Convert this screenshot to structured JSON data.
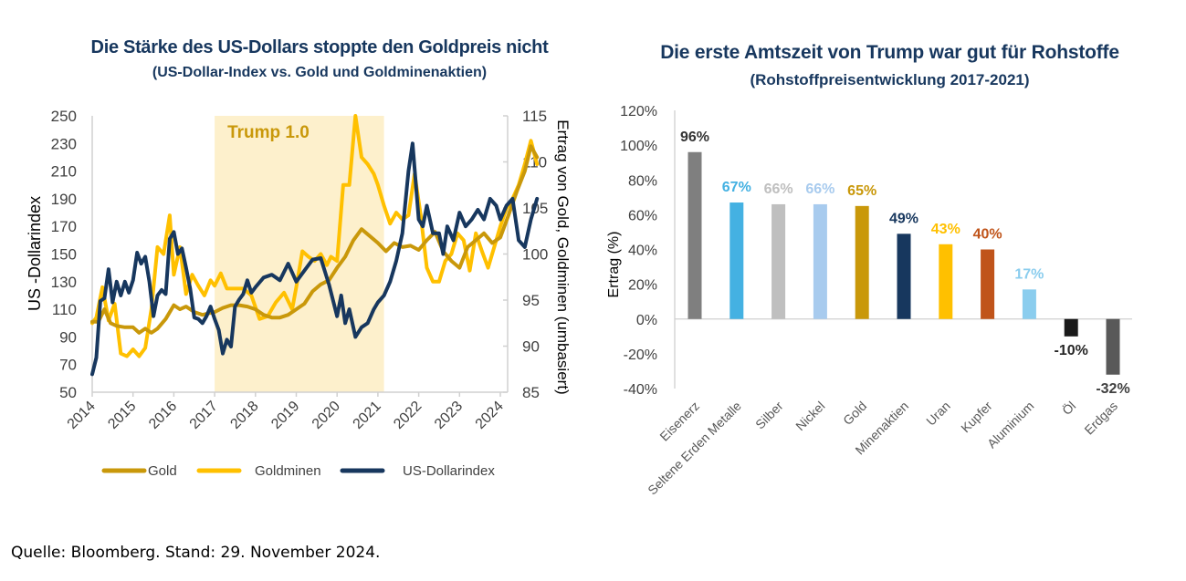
{
  "left_chart": {
    "title": "Die Stärke des US-Dollars stoppte den Goldpreis nicht",
    "subtitle": "(US-Dollar-Index vs. Gold und Goldminenaktien)",
    "band_label": "Trump 1.0",
    "legend": [
      "Gold",
      "Goldminen",
      "US-Dollarindex"
    ]
  },
  "right_chart": {
    "title": "Die erste Amtszeit von Trump war gut für Rohstoffe",
    "subtitle": "(Rohstoffpreisentwicklung  2017-2021)"
  },
  "source": "Quelle: Bloomberg. Stand: 29. November 2024.",
  "chart_data": [
    {
      "type": "line",
      "title": "Die Stärke des US-Dollars stoppte den Goldpreis nicht",
      "subtitle": "(US-Dollar-Index vs. Gold und Goldminenaktien)",
      "xlabel": "",
      "ylabel": "US -Dollarindex",
      "y2label": "Ertrag von Gold, Goldminen (umbasiert)",
      "xlim": [
        2014,
        2024.9
      ],
      "ylim": [
        50,
        250
      ],
      "y2lim": [
        85,
        115
      ],
      "xticks": [
        "2014",
        "2015",
        "2016",
        "2017",
        "2018",
        "2019",
        "2020",
        "2021",
        "2022",
        "2023",
        "2024"
      ],
      "yticks": [
        50,
        70,
        90,
        110,
        130,
        150,
        170,
        190,
        210,
        230,
        250
      ],
      "y2ticks": [
        85,
        90,
        95,
        100,
        105,
        110,
        115
      ],
      "grid": false,
      "legend_position": "bottom",
      "shaded_region": {
        "label": "Trump 1.0",
        "from": 2017.0,
        "to": 2021.15,
        "color": "#fdf0cc"
      },
      "series": [
        {
          "name": "Gold",
          "color": "#c9980a",
          "x": [
            2014.0,
            2014.15,
            2014.3,
            2014.45,
            2014.6,
            2014.8,
            2015.0,
            2015.15,
            2015.3,
            2015.45,
            2015.6,
            2015.8,
            2016.0,
            2016.15,
            2016.3,
            2016.5,
            2016.7,
            2016.85,
            2017.0,
            2017.2,
            2017.4,
            2017.6,
            2017.8,
            2018.0,
            2018.2,
            2018.4,
            2018.6,
            2018.8,
            2019.0,
            2019.2,
            2019.4,
            2019.6,
            2019.8,
            2020.0,
            2020.2,
            2020.4,
            2020.6,
            2020.8,
            2021.0,
            2021.2,
            2021.4,
            2021.6,
            2021.8,
            2022.0,
            2022.2,
            2022.4,
            2022.6,
            2022.8,
            2023.0,
            2023.2,
            2023.4,
            2023.6,
            2023.8,
            2024.0,
            2024.2,
            2024.4,
            2024.6,
            2024.75,
            2024.9
          ],
          "values": [
            101,
            101,
            110,
            100,
            98,
            97,
            97,
            93,
            96,
            93,
            96,
            103,
            113,
            110,
            112,
            108,
            106,
            107,
            108,
            111,
            113,
            113,
            112,
            110,
            106,
            104,
            104,
            106,
            110,
            114,
            123,
            128,
            131,
            140,
            148,
            160,
            168,
            163,
            158,
            152,
            158,
            155,
            156,
            153,
            160,
            166,
            152,
            145,
            140,
            155,
            160,
            165,
            158,
            162,
            178,
            195,
            210,
            228,
            220
          ]
        },
        {
          "name": "Goldminen",
          "color": "#ffc000",
          "x": [
            2014.0,
            2014.1,
            2014.25,
            2014.4,
            2014.55,
            2014.7,
            2014.85,
            2015.0,
            2015.15,
            2015.3,
            2015.45,
            2015.6,
            2015.75,
            2015.9,
            2016.0,
            2016.15,
            2016.3,
            2016.45,
            2016.6,
            2016.75,
            2016.9,
            2017.0,
            2017.15,
            2017.3,
            2017.5,
            2017.7,
            2017.9,
            2018.1,
            2018.3,
            2018.5,
            2018.7,
            2018.9,
            2019.0,
            2019.15,
            2019.3,
            2019.45,
            2019.6,
            2019.75,
            2019.85,
            2020.0,
            2020.15,
            2020.3,
            2020.45,
            2020.6,
            2020.75,
            2020.9,
            2021.0,
            2021.15,
            2021.3,
            2021.45,
            2021.6,
            2021.75,
            2021.9,
            2022.05,
            2022.2,
            2022.35,
            2022.5,
            2022.65,
            2022.8,
            2022.95,
            2023.1,
            2023.25,
            2023.4,
            2023.55,
            2023.7,
            2023.85,
            2024.0,
            2024.15,
            2024.3,
            2024.45,
            2024.6,
            2024.75,
            2024.9
          ],
          "values": [
            100,
            104,
            126,
            102,
            114,
            78,
            76,
            81,
            76,
            82,
            110,
            155,
            150,
            178,
            135,
            155,
            121,
            135,
            127,
            120,
            131,
            127,
            136,
            125,
            125,
            125,
            120,
            103,
            105,
            115,
            122,
            110,
            126,
            152,
            148,
            145,
            150,
            142,
            148,
            145,
            200,
            200,
            250,
            220,
            215,
            208,
            200,
            185,
            172,
            180,
            175,
            178,
            208,
            178,
            140,
            130,
            130,
            145,
            150,
            165,
            160,
            138,
            165,
            152,
            140,
            155,
            170,
            183,
            190,
            200,
            215,
            232,
            215
          ]
        },
        {
          "name": "US-Dollarindex",
          "color": "#17375e",
          "x": [
            2014.0,
            2014.1,
            2014.2,
            2014.3,
            2014.4,
            2014.5,
            2014.6,
            2014.7,
            2014.8,
            2014.9,
            2015.0,
            2015.1,
            2015.2,
            2015.3,
            2015.4,
            2015.5,
            2015.6,
            2015.7,
            2015.8,
            2015.9,
            2016.0,
            2016.1,
            2016.2,
            2016.3,
            2016.4,
            2016.5,
            2016.6,
            2016.7,
            2016.8,
            2016.9,
            2017.0,
            2017.1,
            2017.2,
            2017.3,
            2017.4,
            2017.5,
            2017.6,
            2017.7,
            2017.8,
            2017.9,
            2018.0,
            2018.2,
            2018.4,
            2018.6,
            2018.8,
            2019.0,
            2019.2,
            2019.4,
            2019.6,
            2019.8,
            2020.0,
            2020.1,
            2020.2,
            2020.3,
            2020.45,
            2020.6,
            2020.75,
            2020.9,
            2021.0,
            2021.15,
            2021.3,
            2021.45,
            2021.6,
            2021.75,
            2021.85,
            2022.0,
            2022.1,
            2022.2,
            2022.35,
            2022.5,
            2022.6,
            2022.7,
            2022.85,
            2023.0,
            2023.15,
            2023.3,
            2023.45,
            2023.6,
            2023.75,
            2023.9,
            2024.0,
            2024.15,
            2024.3,
            2024.45,
            2024.6,
            2024.75,
            2024.9
          ],
          "values": [
            63,
            75,
            116,
            118,
            139,
            115,
            130,
            120,
            130,
            122,
            131,
            151,
            143,
            148,
            130,
            105,
            120,
            124,
            121,
            161,
            166,
            150,
            154,
            140,
            125,
            104,
            103,
            100,
            105,
            112,
            103,
            95,
            78,
            88,
            83,
            112,
            117,
            121,
            131,
            122,
            126,
            133,
            135,
            131,
            143,
            130,
            138,
            146,
            147,
            128,
            105,
            120,
            100,
            110,
            90,
            97,
            100,
            110,
            115,
            120,
            130,
            145,
            165,
            210,
            230,
            175,
            170,
            185,
            165,
            165,
            150,
            170,
            160,
            180,
            170,
            175,
            182,
            175,
            190,
            185,
            175,
            185,
            190,
            160,
            155,
            175,
            190
          ]
        }
      ]
    },
    {
      "type": "bar",
      "title": "Die erste Amtszeit von Trump war gut für Rohstoffe",
      "subtitle": "(Rohstoffpreisentwicklung  2017-2021)",
      "xlabel": "",
      "ylabel": "Ertrag (%)",
      "ylim": [
        -40,
        120
      ],
      "yticks": [
        "120%",
        "100%",
        "80%",
        "60%",
        "40%",
        "20%",
        "0%",
        "-20%",
        "-40%"
      ],
      "grid": false,
      "categories": [
        "Eisenerz",
        "Seltene Erden Metalle",
        "Silber",
        "Nickel",
        "Gold",
        "Minenaktien",
        "Uran",
        "Kupfer",
        "Aluminium",
        "Öl",
        "Erdgas"
      ],
      "values": [
        96,
        67,
        66,
        66,
        65,
        49,
        43,
        40,
        17,
        -10,
        -32
      ],
      "data_labels": [
        "96%",
        "67%",
        "66%",
        "66%",
        "65%",
        "49%",
        "43%",
        "40%",
        "17%",
        "-10%",
        "-32%"
      ],
      "colors": [
        "#7f7f7f",
        "#44b1e2",
        "#bfbfbf",
        "#a8cbee",
        "#c9980a",
        "#17375e",
        "#ffc000",
        "#c0541a",
        "#8bcdee",
        "#1a1a1a",
        "#595959"
      ],
      "label_colors": [
        "#333333",
        "#44b1e2",
        "#bfbfbf",
        "#a8cbee",
        "#c9980a",
        "#17375e",
        "#ffc000",
        "#c0541a",
        "#8bcdee",
        "#262626",
        "#404040"
      ]
    }
  ]
}
